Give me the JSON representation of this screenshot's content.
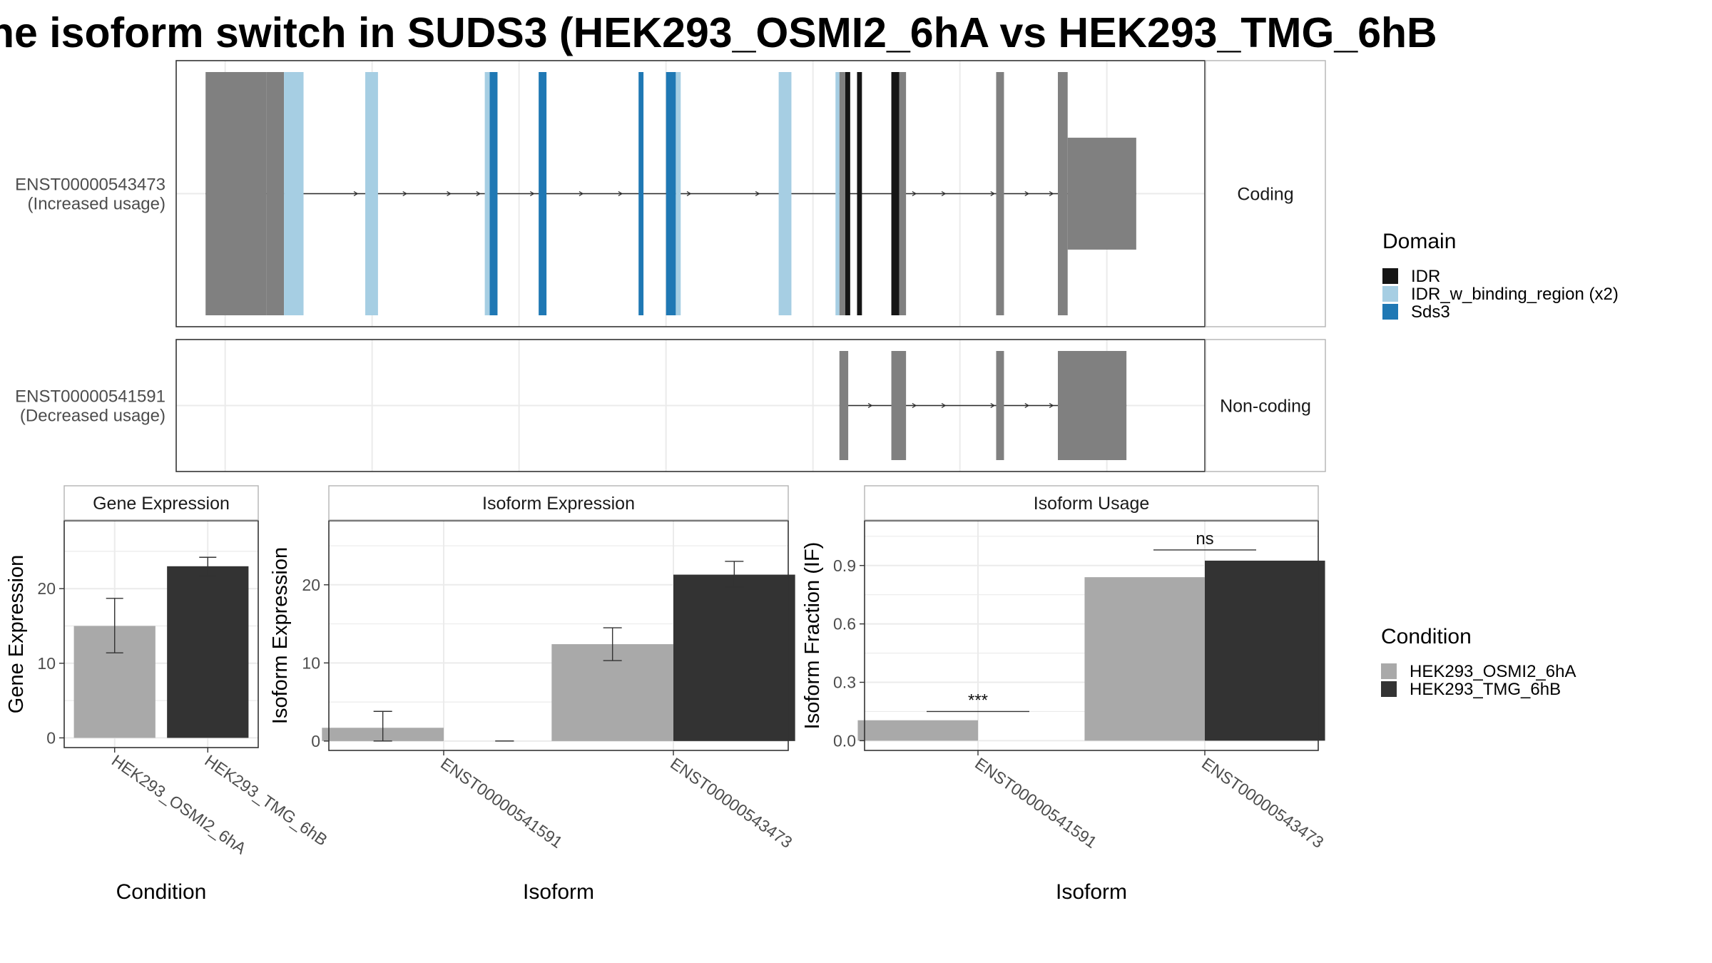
{
  "title": "he isoform switch in SUDS3 (HEK293_OSMI2_6hA vs HEK293_TMG_6hB",
  "colors": {
    "idr": "#151515",
    "idr_binding": "#a6cee3",
    "sds3": "#1f78b4",
    "exon": "#808080",
    "cond_a": "#a9a9a9",
    "cond_b": "#333333"
  },
  "chart_data": [
    {
      "type": "gene-structure",
      "tracks": [
        {
          "name": "ENST00000543473",
          "usage": "(Increased usage)",
          "strip": "Coding",
          "exon_blocks": [
            {
              "start": 0.3,
              "end": 0.92,
              "domain": "none"
            },
            {
              "start": 0.92,
              "end": 1.1,
              "domain": "none"
            },
            {
              "start": 1.1,
              "end": 1.3,
              "domain": "IDR_w_binding_region (x2)"
            },
            {
              "start": 1.93,
              "end": 2.06,
              "domain": "IDR_w_binding_region (x2)"
            },
            {
              "start": 3.15,
              "end": 3.2,
              "domain": "IDR_w_binding_region (x2)"
            },
            {
              "start": 3.2,
              "end": 3.28,
              "domain": "Sds3"
            },
            {
              "start": 3.7,
              "end": 3.78,
              "domain": "Sds3"
            },
            {
              "start": 4.72,
              "end": 4.77,
              "domain": "Sds3"
            },
            {
              "start": 5.0,
              "end": 5.1,
              "domain": "Sds3"
            },
            {
              "start": 5.1,
              "end": 5.15,
              "domain": "IDR_w_binding_region (x2)"
            },
            {
              "start": 6.15,
              "end": 6.28,
              "domain": "IDR_w_binding_region (x2)"
            },
            {
              "start": 6.73,
              "end": 6.77,
              "domain": "IDR_w_binding_region (x2)"
            },
            {
              "start": 6.77,
              "end": 6.83,
              "domain": "none"
            },
            {
              "start": 6.83,
              "end": 6.88,
              "domain": "IDR"
            },
            {
              "start": 6.95,
              "end": 7.0,
              "domain": "IDR"
            },
            {
              "start": 7.3,
              "end": 7.38,
              "domain": "IDR"
            },
            {
              "start": 7.38,
              "end": 7.45,
              "domain": "none"
            },
            {
              "start": 8.37,
              "end": 8.45,
              "domain": "none"
            },
            {
              "start": 9.0,
              "end": 9.1,
              "domain": "none"
            },
            {
              "start": 9.1,
              "end": 9.8,
              "domain": "none"
            }
          ],
          "thin_blocks": [
            {
              "start": 0.3,
              "end": 0.48
            },
            {
              "start": 9.1,
              "end": 9.8
            }
          ],
          "arrows": [
            0.55,
            0.85,
            1.25,
            1.85,
            2.35,
            2.8,
            3.1,
            3.65,
            4.15,
            4.55,
            5.25,
            5.95,
            7.55,
            7.85,
            8.35,
            8.7,
            8.95
          ]
        },
        {
          "name": "ENST00000541591",
          "usage": "(Decreased usage)",
          "strip": "Non-coding",
          "exon_blocks": [
            {
              "start": 6.77,
              "end": 6.86,
              "domain": "none"
            },
            {
              "start": 7.3,
              "end": 7.45,
              "domain": "none"
            },
            {
              "start": 8.37,
              "end": 8.45,
              "domain": "none"
            },
            {
              "start": 9.0,
              "end": 9.7,
              "domain": "none"
            }
          ],
          "thin_blocks": [],
          "arrows": [
            7.1,
            7.55,
            7.85,
            8.35,
            8.7,
            8.95
          ]
        }
      ]
    },
    {
      "type": "bar",
      "strip": "Gene Expression",
      "xlabel": "Condition",
      "ylabel": "Gene Expression",
      "ylim": [
        -1.3,
        29.1
      ],
      "yticks": [
        0,
        10,
        20
      ],
      "categories": [
        "HEK293_OSMI2_6hA",
        "HEK293_TMG_6hB"
      ],
      "values": [
        15.0,
        23.0
      ],
      "errors": [
        [
          11.4,
          18.7
        ],
        [
          21.7,
          24.2
        ]
      ]
    },
    {
      "type": "bar",
      "strip": "Isoform Expression",
      "xlabel": "Isoform",
      "ylabel": "Isoform Expression",
      "ylim": [
        -1.2,
        28.2
      ],
      "yticks": [
        0,
        10,
        20
      ],
      "categories": [
        "ENST00000541591",
        "ENST00000543473"
      ],
      "series": [
        {
          "name": "HEK293_OSMI2_6hA",
          "values": [
            1.7,
            12.4
          ],
          "errors": [
            [
              0.0,
              3.8
            ],
            [
              10.3,
              14.5
            ]
          ]
        },
        {
          "name": "HEK293_TMG_6hB",
          "values": [
            0.0,
            21.3
          ],
          "errors": [
            [
              0.0,
              0.0
            ],
            [
              19.7,
              23.0
            ]
          ]
        }
      ]
    },
    {
      "type": "bar",
      "strip": "Isoform Usage",
      "xlabel": "Isoform",
      "ylabel": "Isoform Fraction (IF)",
      "ylim": [
        -0.05,
        1.13
      ],
      "yticks": [
        "0.0",
        "0.3",
        "0.6",
        "0.9"
      ],
      "categories": [
        "ENST00000541591",
        "ENST00000543473"
      ],
      "series": [
        {
          "name": "HEK293_OSMI2_6hA",
          "values": [
            0.105,
            0.84
          ]
        },
        {
          "name": "HEK293_TMG_6hB",
          "values": [
            0.0,
            0.925
          ]
        }
      ],
      "significance": [
        {
          "label": "***",
          "y": 0.15
        },
        {
          "label": "ns",
          "y": 0.98
        }
      ]
    }
  ],
  "legend_domain": {
    "title": "Domain",
    "items": [
      {
        "label": "IDR",
        "color": "#151515"
      },
      {
        "label": "IDR_w_binding_region (x2)",
        "color": "#a6cee3"
      },
      {
        "label": "Sds3",
        "color": "#1f78b4"
      }
    ]
  },
  "legend_condition": {
    "title": "Condition",
    "items": [
      {
        "label": "HEK293_OSMI2_6hA",
        "color": "#a9a9a9"
      },
      {
        "label": "HEK293_TMG_6hB",
        "color": "#333333"
      }
    ]
  }
}
